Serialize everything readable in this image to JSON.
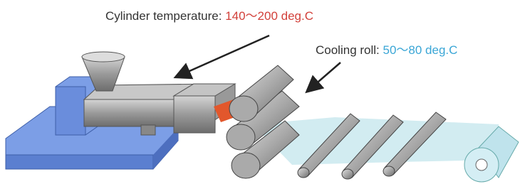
{
  "labels": {
    "cylinder": {
      "name": "Cylinder temperature: ",
      "value": "140～200 deg.C"
    },
    "cooling": {
      "name": "Cooling roll: ",
      "value": "50～80 deg.C"
    }
  }
}
